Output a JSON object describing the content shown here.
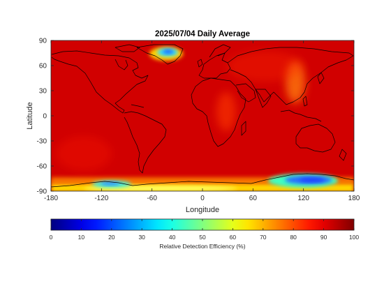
{
  "chart_data": {
    "type": "heatmap",
    "title": "2025/07/04 Daily Average",
    "xlabel": "Longitude",
    "ylabel": "Latitude",
    "xlim": [
      -180,
      180
    ],
    "ylim": [
      -90,
      90
    ],
    "xticks": [
      -180,
      -120,
      -60,
      0,
      60,
      120,
      180
    ],
    "yticks": [
      90,
      60,
      30,
      0,
      -30,
      -60,
      -90
    ],
    "colormap": "jet",
    "clim": [
      0,
      100
    ],
    "background_value": 92,
    "colorbar": {
      "label": "Relative Detection Efficiency (%)",
      "ticks": [
        0,
        10,
        20,
        30,
        40,
        50,
        60,
        70,
        80,
        90,
        100
      ],
      "location": "bottom"
    },
    "regions": [
      {
        "lon": -38,
        "lat": 72,
        "value": 32
      },
      {
        "lon": 125,
        "lat": -74,
        "value": 30
      },
      {
        "lon": 112,
        "lat": -72,
        "value": 40
      },
      {
        "lon": -115,
        "lat": -80,
        "value": 40
      },
      {
        "lon": -10,
        "lat": -80,
        "value": 70
      },
      {
        "lon": 60,
        "lat": -78,
        "value": 72
      },
      {
        "lon": 115,
        "lat": 35,
        "value": 82
      },
      {
        "lon": 30,
        "lat": 5,
        "value": 86
      },
      {
        "lon": 50,
        "lat": 60,
        "value": 88
      }
    ]
  }
}
